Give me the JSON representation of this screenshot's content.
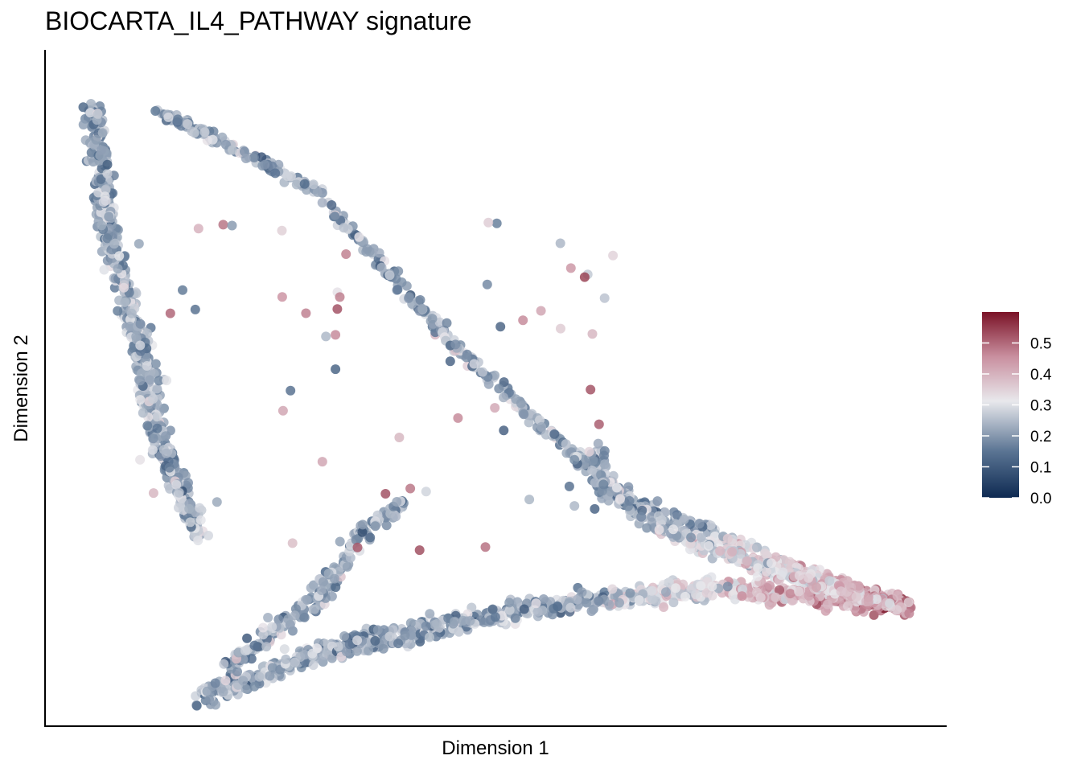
{
  "chart_data": {
    "type": "scatter",
    "title": "BIOCARTA_IL4_PATHWAY signature",
    "xlabel": "Dimension 1",
    "ylabel": "Dimension 2",
    "axis_ticks_shown": false,
    "grid": false,
    "colorbar": {
      "position": "right",
      "min": 0.0,
      "max": 0.6,
      "ticks": [
        "0.0",
        "0.1",
        "0.2",
        "0.3",
        "0.4",
        "0.5"
      ],
      "colors": [
        "#0e2a52",
        "#5a7493",
        "#e8e8ec",
        "#c98f9f",
        "#7a1226"
      ]
    },
    "trajectory_paths": [
      {
        "name": "left-arm",
        "points": [
          [
            0.05,
            0.93
          ],
          [
            0.06,
            0.82
          ],
          [
            0.07,
            0.72
          ],
          [
            0.1,
            0.58
          ],
          [
            0.13,
            0.4
          ],
          [
            0.17,
            0.28
          ]
        ]
      },
      {
        "name": "upper-diagonal",
        "points": [
          [
            0.12,
            0.92
          ],
          [
            0.3,
            0.8
          ],
          [
            0.45,
            0.57
          ],
          [
            0.63,
            0.35
          ],
          [
            0.8,
            0.25
          ],
          [
            0.96,
            0.17
          ]
        ]
      },
      {
        "name": "bottom-arm",
        "points": [
          [
            0.17,
            0.03
          ],
          [
            0.3,
            0.1
          ],
          [
            0.4,
            0.13
          ],
          [
            0.55,
            0.17
          ],
          [
            0.75,
            0.2
          ],
          [
            0.96,
            0.17
          ]
        ]
      },
      {
        "name": "inner-spike",
        "points": [
          [
            0.2,
            0.08
          ],
          [
            0.3,
            0.18
          ],
          [
            0.35,
            0.28
          ],
          [
            0.4,
            0.33
          ]
        ]
      },
      {
        "name": "right-branch",
        "points": [
          [
            0.61,
            0.4
          ],
          [
            0.63,
            0.34
          ],
          [
            0.7,
            0.28
          ],
          [
            0.8,
            0.23
          ],
          [
            0.96,
            0.17
          ]
        ]
      }
    ]
  }
}
